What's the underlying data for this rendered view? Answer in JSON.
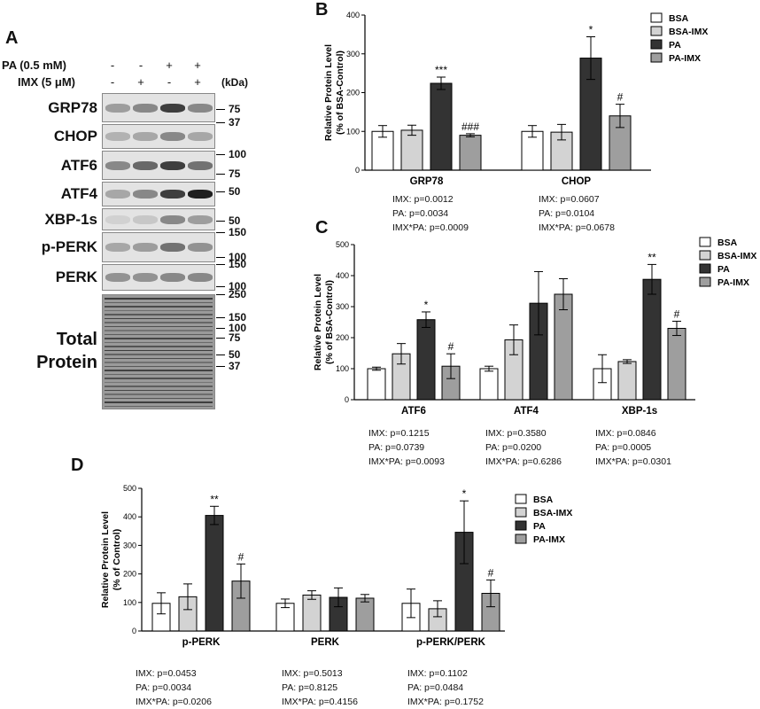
{
  "panel_a": {
    "letter": "A",
    "treatments": [
      {
        "label": "PA (0.5 mM)",
        "signs": [
          "-",
          "-",
          "+",
          "+"
        ]
      },
      {
        "label": "IMX (5 μM)",
        "signs": [
          "-",
          "+",
          "-",
          "+"
        ]
      }
    ],
    "kda_label": "(kDa)",
    "blots": [
      {
        "name": "GRP78",
        "markers": [
          "75",
          "37"
        ],
        "intensity": [
          0.35,
          0.45,
          0.8,
          0.45
        ]
      },
      {
        "name": "CHOP",
        "markers": [],
        "intensity": [
          0.25,
          0.3,
          0.45,
          0.3
        ]
      },
      {
        "name": "ATF6",
        "markers": [
          "100",
          "75"
        ],
        "intensity": [
          0.45,
          0.6,
          0.8,
          0.55
        ]
      },
      {
        "name": "ATF4",
        "markers": [
          "50"
        ],
        "intensity": [
          0.3,
          0.45,
          0.8,
          0.95
        ]
      },
      {
        "name": "XBP-1s",
        "markers": [
          "50"
        ],
        "intensity": [
          0.1,
          0.15,
          0.45,
          0.35
        ]
      },
      {
        "name": "p-PERK",
        "markers": [
          "150",
          "100"
        ],
        "intensity": [
          0.3,
          0.35,
          0.55,
          0.4
        ]
      },
      {
        "name": "PERK",
        "markers": [
          "150",
          "100"
        ],
        "intensity": [
          0.4,
          0.4,
          0.45,
          0.45
        ]
      },
      {
        "name": "Total\nProtein",
        "markers": [
          "250",
          "150",
          "100",
          "75",
          "50",
          "37"
        ],
        "intensity": [
          0.6,
          0.6,
          0.6,
          0.6
        ]
      }
    ]
  },
  "colors": {
    "BSA": "#ffffff",
    "BSA-IMX": "#d3d3d3",
    "PA": "#333333",
    "PA-IMX": "#9e9e9e"
  },
  "chart_data": [
    {
      "panel": "B",
      "type": "bar",
      "ylabel": "Relative Protein Level\n(% of BSA-Control)",
      "ylim": [
        0,
        400
      ],
      "yticks": [
        0,
        100,
        200,
        300,
        400
      ],
      "legend": [
        "BSA",
        "BSA-IMX",
        "PA",
        "PA-IMX"
      ],
      "legend_position": "right",
      "categories": [
        "GRP78",
        "CHOP"
      ],
      "series": [
        {
          "name": "BSA",
          "values": [
            100,
            100
          ],
          "errors": [
            15,
            15
          ]
        },
        {
          "name": "BSA-IMX",
          "values": [
            103,
            98
          ],
          "errors": [
            13,
            20
          ]
        },
        {
          "name": "PA",
          "values": [
            224,
            289
          ],
          "errors": [
            16,
            55
          ]
        },
        {
          "name": "PA-IMX",
          "values": [
            90,
            140
          ],
          "errors": [
            4,
            30
          ]
        }
      ],
      "annotations": [
        [
          "",
          ""
        ],
        [
          "",
          ""
        ],
        [
          "***",
          "*"
        ],
        [
          "###",
          "#"
        ]
      ],
      "stats": [
        [
          "IMX: p=0.0012",
          "PA: p=0.0034",
          "IMX*PA: p=0.0009"
        ],
        [
          "IMX: p=0.0607",
          "PA: p=0.0104",
          "IMX*PA: p=0.0678"
        ]
      ]
    },
    {
      "panel": "C",
      "type": "bar",
      "ylabel": "Relative Protein Level\n(% of BSA-Control)",
      "ylim": [
        0,
        500
      ],
      "yticks": [
        0,
        100,
        200,
        300,
        400,
        500
      ],
      "legend": [
        "BSA",
        "BSA-IMX",
        "PA",
        "PA-IMX"
      ],
      "legend_position": "right",
      "categories": [
        "ATF6",
        "ATF4",
        "XBP-1s"
      ],
      "series": [
        {
          "name": "BSA",
          "values": [
            100,
            100,
            100
          ],
          "errors": [
            5,
            8,
            45
          ]
        },
        {
          "name": "BSA-IMX",
          "values": [
            148,
            193,
            123
          ],
          "errors": [
            33,
            48,
            6
          ]
        },
        {
          "name": "PA",
          "values": [
            258,
            311,
            388
          ],
          "errors": [
            25,
            102,
            48
          ]
        },
        {
          "name": "PA-IMX",
          "values": [
            108,
            340,
            230
          ],
          "errors": [
            40,
            50,
            23
          ]
        }
      ],
      "annotations": [
        [
          "",
          "",
          ""
        ],
        [
          "",
          "",
          ""
        ],
        [
          "*",
          "",
          "**"
        ],
        [
          "#",
          "",
          "#"
        ]
      ],
      "stats": [
        [
          "IMX: p=0.1215",
          "PA: p=0.0739",
          "IMX*PA: p=0.0093"
        ],
        [
          "IMX: p=0.3580",
          "PA: p=0.0200",
          "IMX*PA: p=0.6286"
        ],
        [
          "IMX: p=0.0846",
          "PA: p=0.0005",
          "IMX*PA: p=0.0301"
        ]
      ]
    },
    {
      "panel": "D",
      "type": "bar",
      "ylabel": "Relative Protein Level\n(% of Control)",
      "ylim": [
        0,
        500
      ],
      "yticks": [
        0,
        100,
        200,
        300,
        400,
        500
      ],
      "legend": [
        "BSA",
        "BSA-IMX",
        "PA",
        "PA-IMX"
      ],
      "legend_position": "right",
      "categories": [
        "p-PERK",
        "PERK",
        "p-PERK/PERK"
      ],
      "series": [
        {
          "name": "BSA",
          "values": [
            97,
            97,
            97
          ],
          "errors": [
            37,
            15,
            50
          ]
        },
        {
          "name": "BSA-IMX",
          "values": [
            120,
            126,
            78
          ],
          "errors": [
            45,
            15,
            28
          ]
        },
        {
          "name": "PA",
          "values": [
            405,
            118,
            346
          ],
          "errors": [
            32,
            33,
            110
          ]
        },
        {
          "name": "PA-IMX",
          "values": [
            175,
            115,
            132
          ],
          "errors": [
            60,
            13,
            47
          ]
        }
      ],
      "annotations": [
        [
          "",
          "",
          ""
        ],
        [
          "",
          "",
          ""
        ],
        [
          "**",
          "",
          "*"
        ],
        [
          "#",
          "",
          "#"
        ]
      ],
      "stats": [
        [
          "IMX: p=0.0453",
          "PA: p=0.0034",
          "IMX*PA: p=0.0206"
        ],
        [
          "IMX: p=0.5013",
          "PA: p=0.8125",
          "IMX*PA: p=0.4156"
        ],
        [
          "IMX: p=0.1102",
          "PA: p=0.0484",
          "IMX*PA: p=0.1752"
        ]
      ]
    }
  ]
}
